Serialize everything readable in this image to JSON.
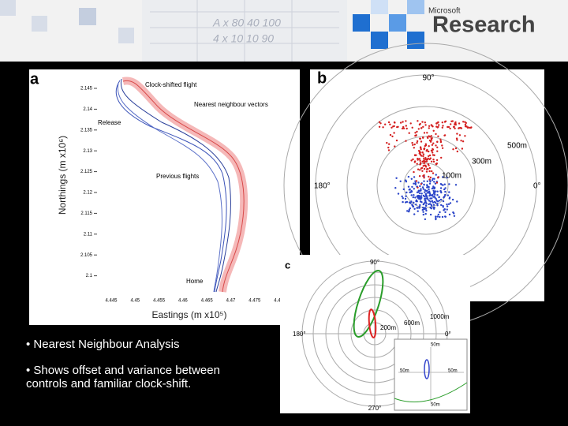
{
  "header": {
    "brand_small": "Microsoft",
    "brand_large": "Research"
  },
  "panel_a": {
    "label": "a",
    "y_label": "Northings (m x10⁶)",
    "x_label": "Eastings (m x10⁵)",
    "y_ticks": [
      "2.145",
      "2.14",
      "2.135",
      "2.13",
      "2.125",
      "2.12",
      "2.115",
      "2.11",
      "2.105",
      "2.1"
    ],
    "x_ticks": [
      "4.445",
      "4.45",
      "4.455",
      "4.46",
      "4.465",
      "4.47",
      "4.475",
      "4.48"
    ],
    "annotations": [
      "Clock-shifted flight",
      "Nearest neighbour vectors",
      "Release",
      "Previous flights",
      "Home"
    ]
  },
  "panel_b": {
    "label": "b",
    "angles": [
      "90°",
      "180°",
      "0°"
    ],
    "distances": [
      "500m",
      "300m",
      "100m"
    ]
  },
  "panel_c": {
    "label": "c",
    "angles": [
      "90°",
      "180°",
      "0°",
      "270°"
    ],
    "distances": [
      "1000m",
      "600m",
      "200m"
    ],
    "inset_labels": [
      "50m",
      "50m",
      "50m",
      "50m"
    ]
  },
  "bullets": [
    "• Nearest Neighbour Analysis",
    "• Shows offset and variance between controls and familiar clock-shift."
  ]
}
